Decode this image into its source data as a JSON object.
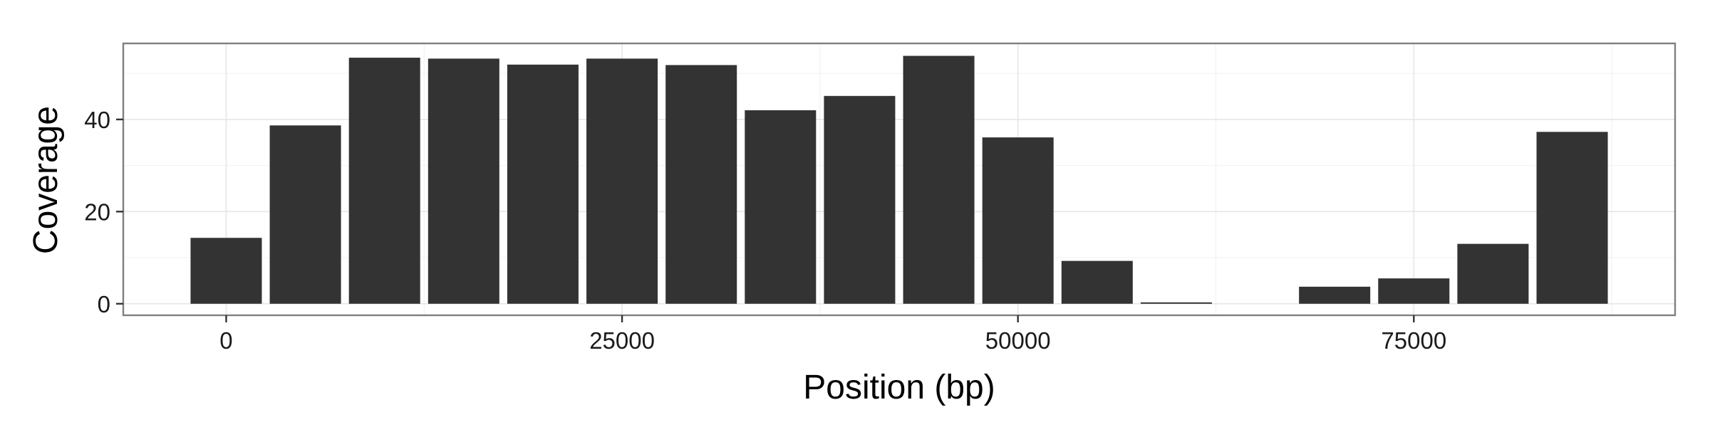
{
  "chart_data": {
    "type": "bar",
    "title": "",
    "xlabel": "Position (bp)",
    "ylabel": "Coverage",
    "x": [
      0,
      5000,
      10000,
      15000,
      20000,
      25000,
      30000,
      35000,
      40000,
      45000,
      50000,
      55000,
      60000,
      65000,
      70000,
      75000,
      80000,
      85000
    ],
    "values": [
      14.3,
      38.7,
      53.4,
      53.2,
      51.9,
      53.2,
      51.8,
      42.0,
      45.1,
      53.8,
      36.1,
      9.3,
      0.3,
      0,
      3.7,
      5.5,
      13.0,
      37.3
    ],
    "bar_width": 4500,
    "xlim": [
      -6500,
      91500
    ],
    "ylim": [
      -2.5,
      56.5
    ],
    "x_ticks": [
      0,
      25000,
      50000,
      75000
    ],
    "x_tick_labels": [
      "0",
      "25000",
      "50000",
      "75000"
    ],
    "y_ticks": [
      0,
      20,
      40
    ],
    "y_tick_labels": [
      "0",
      "20",
      "40"
    ],
    "grid": true,
    "legend": "none",
    "colors": {
      "bar": "#333333",
      "panel_border": "#7f7f7f",
      "grid_major": "#e6e6e6",
      "grid_minor": "#f3f3f3"
    }
  }
}
